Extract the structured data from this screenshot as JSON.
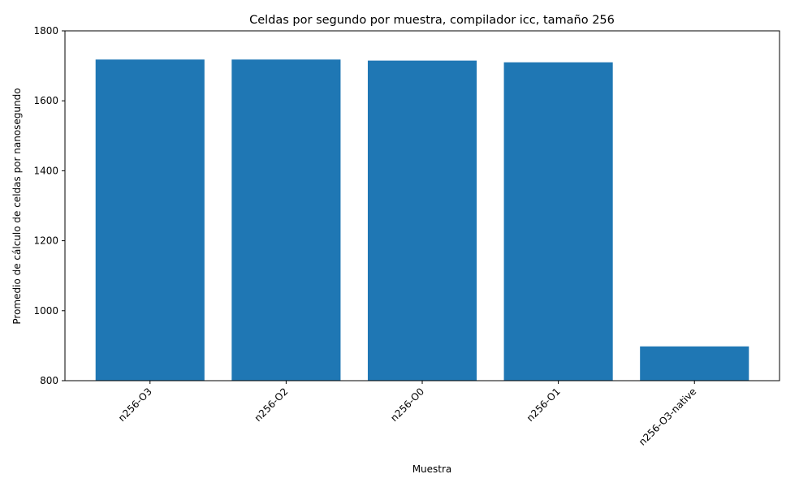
{
  "chart_data": {
    "type": "bar",
    "title": "Celdas por segundo por muestra, compilador icc, tamaño 256",
    "xlabel": "Muestra",
    "ylabel": "Promedio de cálculo de celdas por nanosegundo",
    "categories": [
      "n256-O3",
      "n256-O2",
      "n256-O0",
      "n256-O1",
      "n256-O3-native"
    ],
    "values": [
      1718,
      1718,
      1715,
      1710,
      898
    ],
    "ylim": [
      800,
      1800
    ],
    "yticks": [
      800,
      1000,
      1200,
      1400,
      1600,
      1800
    ],
    "bar_color": "#1f77b4",
    "grid": false,
    "x_tick_rotation": -45
  }
}
